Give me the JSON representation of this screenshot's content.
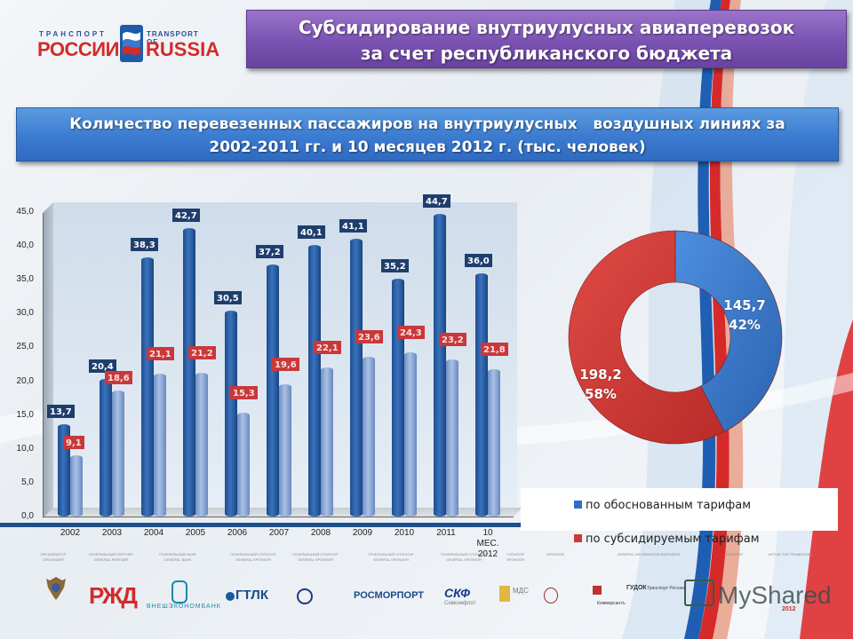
{
  "logo": {
    "ru_small": "ТРАНСПОРТ",
    "ru_big": "РОССИИ",
    "en_small": "TRANSPORT OF",
    "en_big": "RUSSIA"
  },
  "title": {
    "line1": "Субсидирование внутриулусных авиаперевозок",
    "line2": "за счет республиканского бюджета"
  },
  "subtitle": {
    "line1": "Количество перевезенных пассажиров на внутриулусных   воздушных линиях за",
    "line2": "2002-2011 гг. и 10 месяцев 2012 г. (тыс. человек)"
  },
  "colors": {
    "title_purple": "#7a52b1",
    "subtitle_blue": "#3b7bd0",
    "bar_blue": "#2a5ea6",
    "bar_light": "#8ca8d6",
    "label_blue": "#1f3e6e",
    "label_red": "#c9383a",
    "donut_blue": "#3f7fd0",
    "donut_red": "#d23c3a"
  },
  "chart_data": [
    {
      "type": "bar",
      "title": "Количество перевезенных пассажиров на внутриулусных воздушных линиях за 2002-2011 гг. и 10 месяцев 2012 г. (тыс. человек)",
      "xlabel": "",
      "ylabel": "",
      "ylim": [
        0,
        45
      ],
      "yticks": [
        "0,0",
        "5,0",
        "10,0",
        "15,0",
        "20,0",
        "25,0",
        "30,0",
        "35,0",
        "40,0",
        "45,0"
      ],
      "categories": [
        "2002",
        "2003",
        "2004",
        "2005",
        "2006",
        "2007",
        "2008",
        "2009",
        "2010",
        "2011",
        "10 МЕС. 2012"
      ],
      "series": [
        {
          "name": "по обоснованным тарифам",
          "values": [
            13.7,
            20.4,
            38.3,
            42.7,
            30.5,
            37.2,
            40.1,
            41.1,
            35.2,
            44.7,
            36.0
          ],
          "labels": [
            "13,7",
            "20,4",
            "38,3",
            "42,7",
            "30,5",
            "37,2",
            "40,1",
            "41,1",
            "35,2",
            "44,7",
            "36,0"
          ]
        },
        {
          "name": "по субсидируемым тарифам",
          "values": [
            9.1,
            18.6,
            21.1,
            21.2,
            15.3,
            19.6,
            22.1,
            23.6,
            24.3,
            23.2,
            21.8
          ],
          "labels": [
            "9,1",
            "18,6",
            "21,1",
            "21,2",
            "15,3",
            "19,6",
            "22,1",
            "23,6",
            "24,3",
            "23,2",
            "21,8"
          ]
        }
      ],
      "grid": false,
      "style": "3d-cylinder"
    },
    {
      "type": "pie",
      "subtype": "donut",
      "categories": [
        "по обоснованным тарифам",
        "по субсидируемым тарифам"
      ],
      "values": [
        145.7,
        198.2
      ],
      "percent": [
        42,
        58
      ],
      "labels": [
        {
          "value": "145,7",
          "percent": "42%"
        },
        {
          "value": "198,2",
          "percent": "58%"
        }
      ],
      "legend_position": "bottom"
    }
  ],
  "legend": {
    "items": [
      {
        "label": "по обоснованным тарифам",
        "color": "#2f6fc4"
      },
      {
        "label": "по субсидируемым тарифам",
        "color": "#c9383a"
      }
    ]
  },
  "sponsors": {
    "roles": [
      {
        "ru": "ОРГАНИЗАТОР",
        "en": "ORGANIZER"
      },
      {
        "ru": "ГЕНЕРАЛЬНЫЙ ПАРТНЕР",
        "en": "GENERAL PARTNER"
      },
      {
        "ru": "ГЕНЕРАЛЬНЫЙ БАНК",
        "en": "GENERAL BANK"
      },
      {
        "ru": "ГЕНЕРАЛЬНЫЙ СПОНСОР",
        "en": "GENERAL SPONSOR"
      },
      {
        "ru": "ГЕНЕРАЛЬНЫЙ СПОНСОР",
        "en": "GENERAL SPONSOR"
      },
      {
        "ru": "ГЕНЕРАЛЬНЫЙ СПОНСОР",
        "en": "GENERAL SPONSOR"
      },
      {
        "ru": "ГЕНЕРАЛЬНЫЙ СПОНСОР",
        "en": "GENERAL SPONSOR"
      },
      {
        "ru": "СПОНСОР",
        "en": "SPONSOR"
      },
      {
        "ru": "",
        "en": "SPONSOR"
      },
      {
        "ru": "",
        "en": "GENERAL INFORMATION PARTNERS"
      },
      {
        "ru": "",
        "en": "OPERATOR"
      },
      {
        "ru": "",
        "en": "WITHIN THE FRAMEWORK"
      }
    ],
    "logos": {
      "rzd": "РЖД",
      "veb": "ВНЕШЭКОНОМБАНК",
      "gtlk": "ГТЛК",
      "rosmorport": "РОСМОРПОРТ",
      "skf": "СКФ",
      "skf_sub": "Совкомфлот",
      "mds": "МДС",
      "kommersant": "Коммерсантъ",
      "transport_rossii": "Транспорт России",
      "gudok": "ГУДОК",
      "watermark": "MyShared",
      "year": "2012"
    }
  }
}
